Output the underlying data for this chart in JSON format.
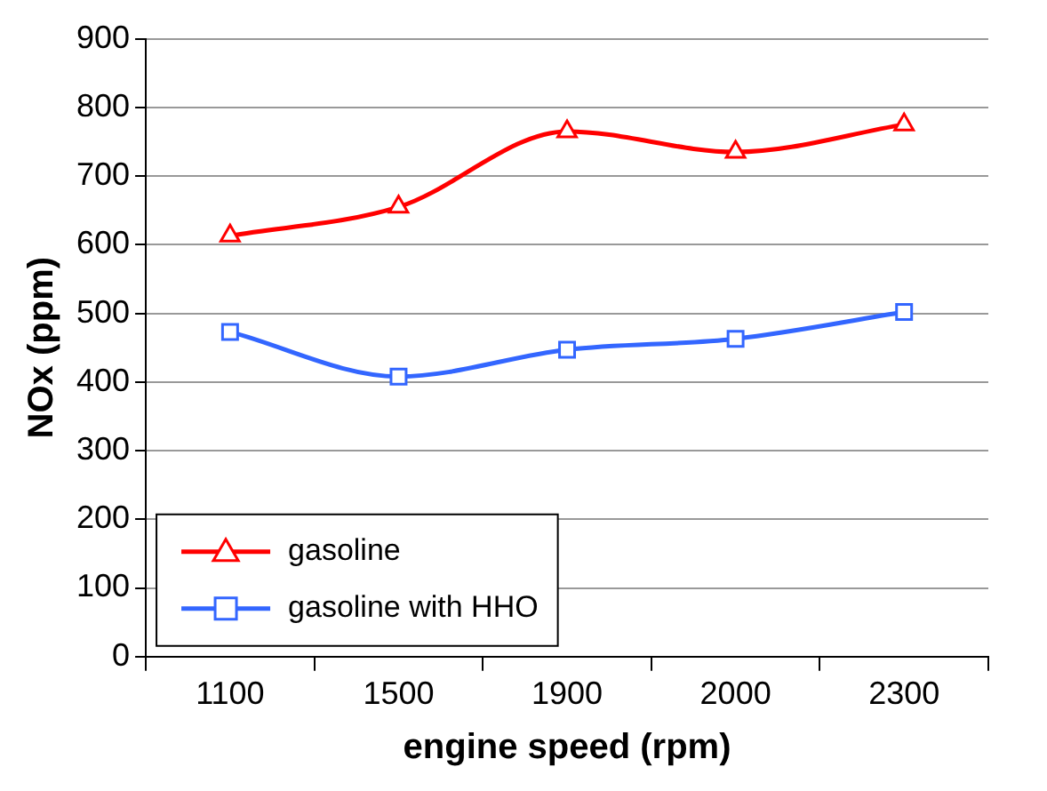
{
  "chart_data": {
    "type": "line",
    "xlabel": "engine speed (rpm)",
    "ylabel": "NOx (ppm)",
    "categories": [
      "1100",
      "1500",
      "1900",
      "2000",
      "2300"
    ],
    "series": [
      {
        "name": "gasoline",
        "color": "#ff0000",
        "marker": "triangle",
        "values": [
          613,
          655,
          765,
          735,
          775
        ]
      },
      {
        "name": "gasoline with HHO",
        "color": "#3366ff",
        "marker": "square",
        "values": [
          473,
          408,
          447,
          463,
          502
        ]
      }
    ],
    "ylim": [
      0,
      900
    ],
    "yticks": [
      0,
      100,
      200,
      300,
      400,
      500,
      600,
      700,
      800,
      900
    ],
    "grid": "y",
    "legend": "bottom left"
  }
}
